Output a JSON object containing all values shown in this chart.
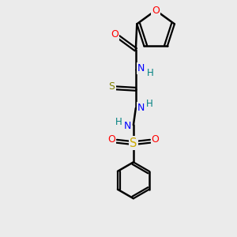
{
  "background_color": "#ebebeb",
  "bond_color": "#000000",
  "atom_colors": {
    "O": "#ff0000",
    "N": "#0000ff",
    "S_thio": "#808000",
    "S_sulfonyl": "#ccaa00",
    "H": "#008080"
  },
  "figsize": [
    3.0,
    3.0
  ],
  "dpi": 100,
  "xlim": [
    0,
    10
  ],
  "ylim": [
    0,
    10
  ]
}
